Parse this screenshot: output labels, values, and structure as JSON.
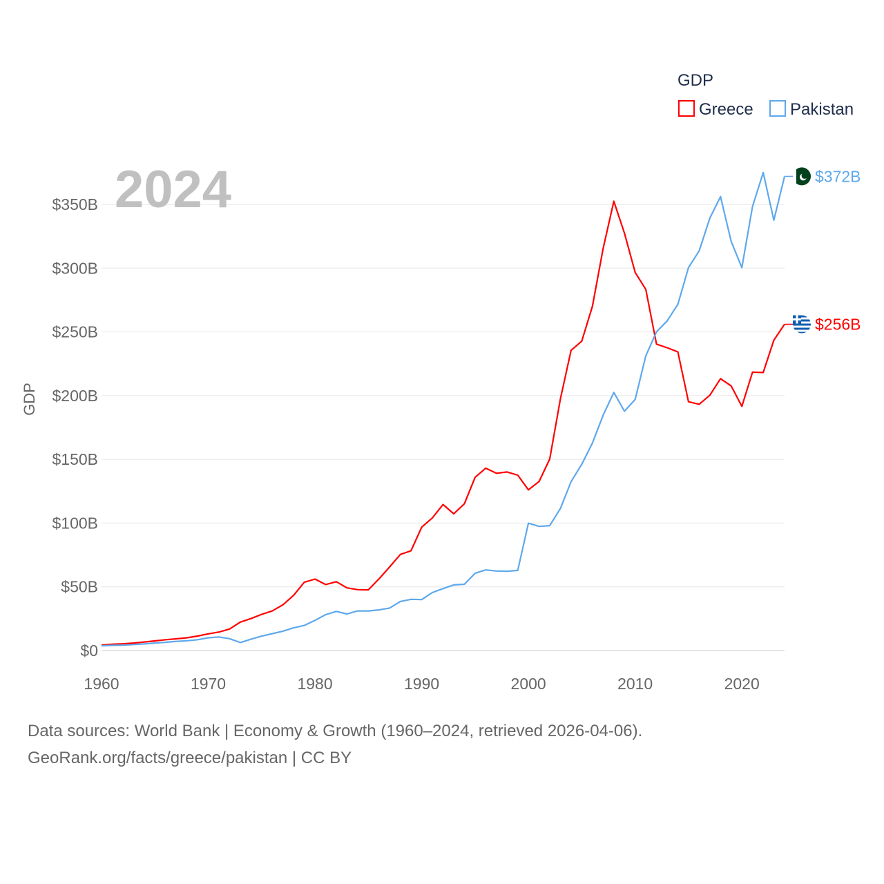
{
  "chart_data": {
    "type": "line",
    "title": "",
    "year_label": "2024",
    "ylabel": "GDP",
    "xlabel": "",
    "xlim": [
      1960,
      2024
    ],
    "ylim": [
      0,
      370
    ],
    "x_ticks": [
      "1960",
      "1970",
      "1980",
      "1990",
      "2000",
      "2010",
      "2020"
    ],
    "x_tick_values": [
      1960,
      1970,
      1980,
      1990,
      2000,
      2010,
      2020
    ],
    "y_ticks": [
      "$0",
      "$50B",
      "$100B",
      "$150B",
      "$200B",
      "$250B",
      "$300B",
      "$350B"
    ],
    "y_tick_values": [
      0,
      50,
      100,
      150,
      200,
      250,
      300,
      350
    ],
    "grid": true,
    "legend": {
      "title": "GDP",
      "placement": "top-right"
    },
    "units": "USD billions",
    "x": [
      1960,
      1961,
      1962,
      1963,
      1964,
      1965,
      1966,
      1967,
      1968,
      1969,
      1970,
      1971,
      1972,
      1973,
      1974,
      1975,
      1976,
      1977,
      1978,
      1979,
      1980,
      1981,
      1982,
      1983,
      1984,
      1985,
      1986,
      1987,
      1988,
      1989,
      1990,
      1991,
      1992,
      1993,
      1994,
      1995,
      1996,
      1997,
      1998,
      1999,
      2000,
      2001,
      2002,
      2003,
      2004,
      2005,
      2006,
      2007,
      2008,
      2009,
      2010,
      2011,
      2012,
      2013,
      2014,
      2015,
      2016,
      2017,
      2018,
      2019,
      2020,
      2021,
      2022,
      2023,
      2024
    ],
    "series": [
      {
        "name": "Greece",
        "color": "#ff0000",
        "end_label": "$256B",
        "values": [
          4.3,
          5.0,
          5.3,
          5.9,
          6.7,
          7.6,
          8.5,
          9.2,
          10.0,
          11.4,
          13.1,
          14.5,
          16.9,
          22.3,
          25.1,
          28.4,
          31.1,
          35.9,
          43.4,
          53.6,
          56.1,
          51.8,
          54.0,
          49.2,
          47.8,
          47.6,
          56.3,
          65.6,
          75.4,
          78.3,
          96.8,
          104.1,
          114.6,
          107.3,
          115.2,
          135.9,
          143.1,
          139.1,
          140.1,
          137.6,
          126.1,
          132.7,
          150.3,
          197.6,
          235.5,
          242.8,
          270.1,
          315.4,
          352.5,
          327.4,
          296.7,
          283.3,
          240.4,
          237.6,
          234.3,
          195.2,
          193.2,
          200.3,
          213.3,
          207.6,
          191.6,
          218.4,
          218.1,
          243.5,
          256
        ]
      },
      {
        "name": "Pakistan",
        "color": "#5ea8ec",
        "end_label": "$372B",
        "values": [
          3.7,
          4.1,
          4.3,
          4.7,
          5.2,
          5.9,
          6.5,
          7.2,
          7.7,
          8.5,
          10.0,
          10.7,
          9.3,
          6.3,
          8.9,
          11.3,
          13.3,
          15.2,
          17.8,
          19.7,
          23.7,
          28.2,
          30.7,
          28.7,
          31.1,
          31.1,
          31.9,
          33.4,
          38.5,
          40.2,
          40.0,
          45.5,
          48.6,
          51.5,
          52.0,
          60.6,
          63.3,
          62.4,
          62.2,
          62.9,
          99.9,
          97.4,
          98.0,
          111.5,
          132.5,
          146.2,
          162.8,
          184.6,
          202.5,
          187.8,
          197.0,
          231.2,
          250.1,
          258.6,
          271.6,
          300.4,
          313.6,
          339.2,
          356.1,
          321.0,
          300.4,
          348.3,
          375.0,
          337.6,
          372
        ]
      }
    ]
  },
  "footer": {
    "line1": "Data sources: World Bank | Economy & Growth (1960–2024, retrieved 2026-04-06).",
    "line2": "GeoRank.org/facts/greece/pakistan | CC BY"
  }
}
